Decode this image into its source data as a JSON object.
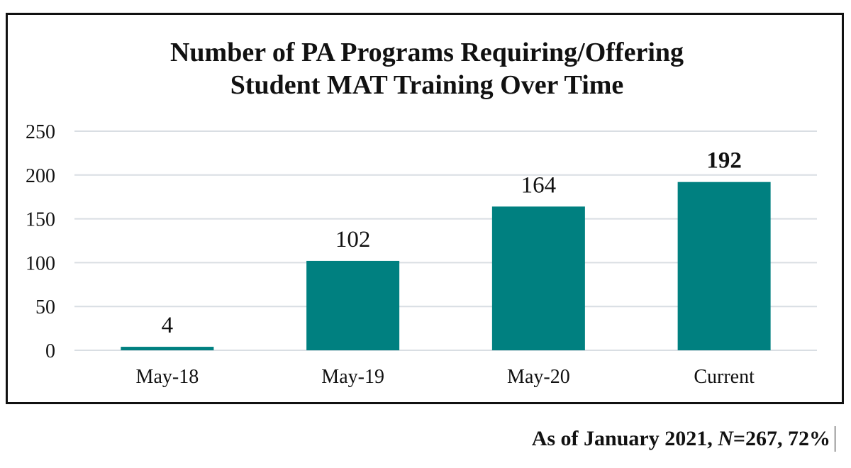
{
  "chart_data": {
    "type": "bar",
    "title_lines": [
      "Number of PA Programs Requiring/Offering",
      "Student MAT Training Over Time"
    ],
    "categories": [
      "May-18",
      "May-19",
      "May-20",
      "Current"
    ],
    "values": [
      4,
      102,
      164,
      192
    ],
    "value_labels": [
      "4",
      "102",
      "164",
      "192"
    ],
    "bold_value_index": 3,
    "yticks": [
      0,
      50,
      100,
      150,
      200,
      250
    ],
    "ylim": [
      0,
      250
    ],
    "grid": true,
    "bar_color": "#008080",
    "grid_color": "#d9dee3",
    "xlabel": "",
    "ylabel": ""
  },
  "footnote": {
    "prefix": "As of January 2021, ",
    "n_symbol": "N",
    "suffix": "=267, 72%"
  }
}
